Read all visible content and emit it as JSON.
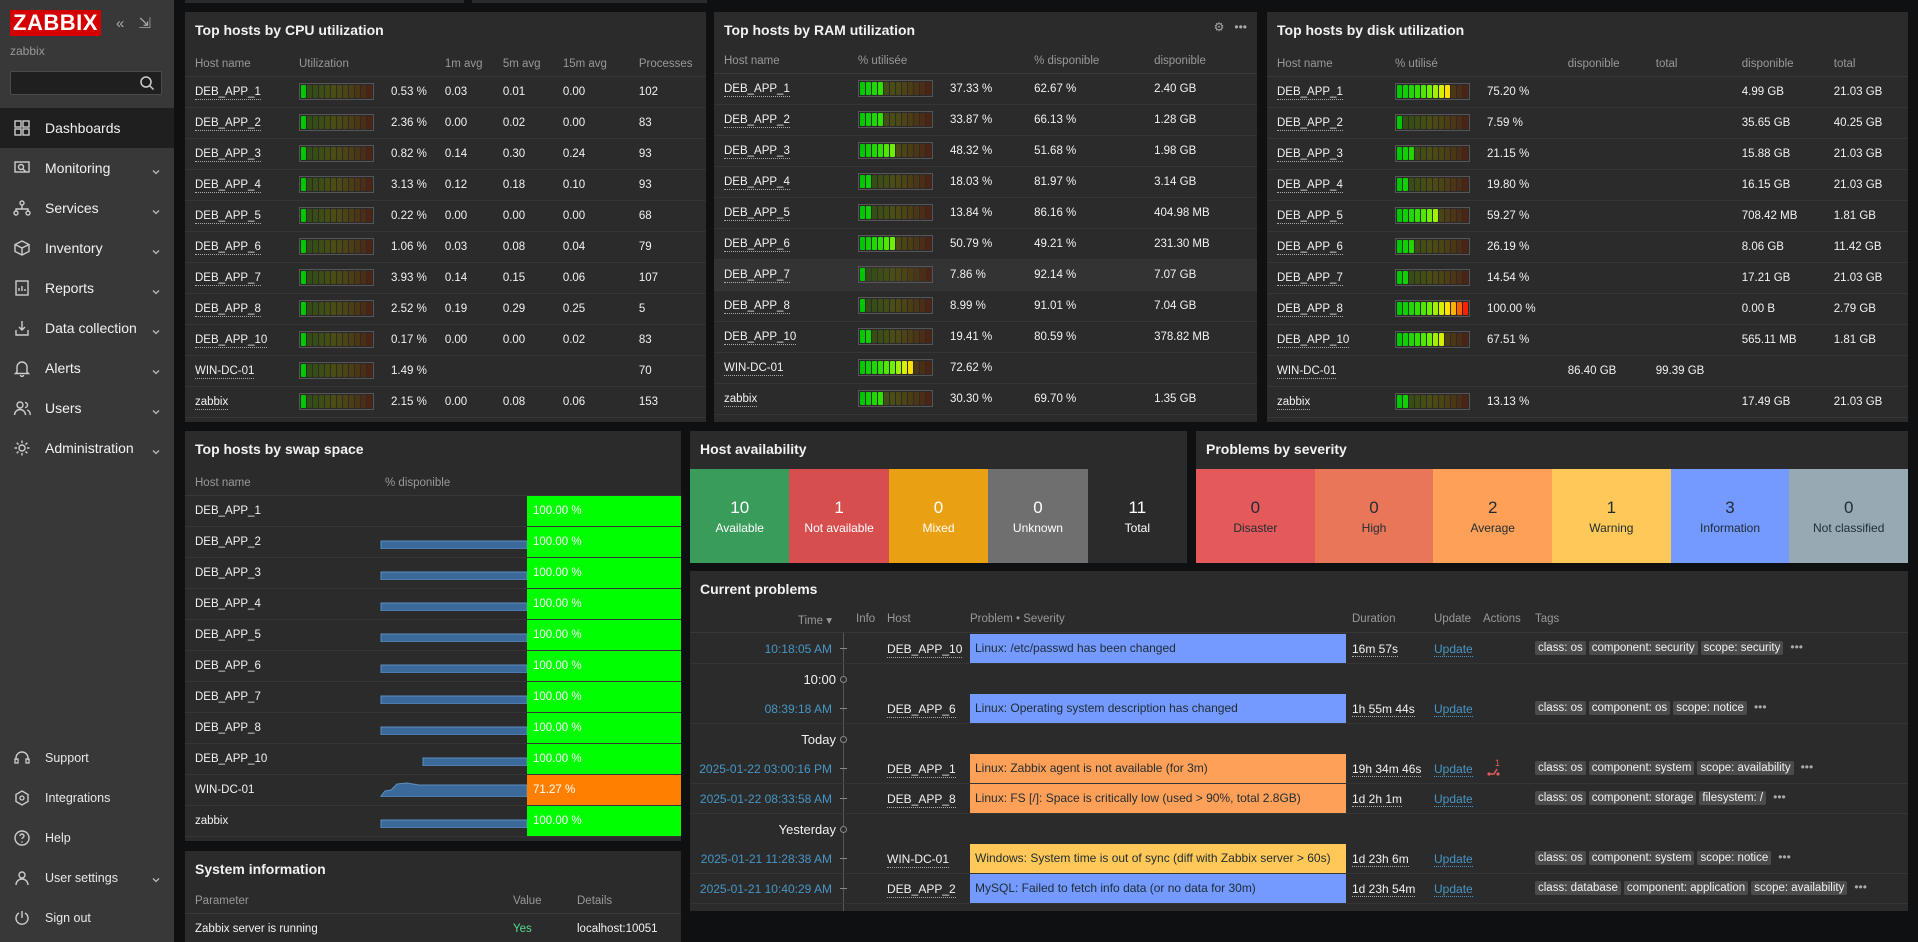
{
  "app": {
    "logo": "ZABBIX",
    "user": "zabbix"
  },
  "sidebar": {
    "search_placeholder": "",
    "items": [
      {
        "label": "Dashboards",
        "icon": "dashboards-icon",
        "active": true,
        "chevron": false
      },
      {
        "label": "Monitoring",
        "icon": "monitoring-icon",
        "chevron": true
      },
      {
        "label": "Services",
        "icon": "services-icon",
        "chevron": true
      },
      {
        "label": "Inventory",
        "icon": "inventory-icon",
        "chevron": true
      },
      {
        "label": "Reports",
        "icon": "reports-icon",
        "chevron": true
      },
      {
        "label": "Data collection",
        "icon": "data-collection-icon",
        "chevron": true
      },
      {
        "label": "Alerts",
        "icon": "alerts-icon",
        "chevron": true
      },
      {
        "label": "Users",
        "icon": "users-icon",
        "chevron": true
      },
      {
        "label": "Administration",
        "icon": "administration-icon",
        "chevron": true
      }
    ],
    "bottom": [
      {
        "label": "Support",
        "icon": "support-icon",
        "chevron": false
      },
      {
        "label": "Integrations",
        "icon": "integrations-icon",
        "chevron": false
      },
      {
        "label": "Help",
        "icon": "help-icon",
        "chevron": false
      },
      {
        "label": "User settings",
        "icon": "user-settings-icon",
        "chevron": true
      },
      {
        "label": "Sign out",
        "icon": "sign-out-icon",
        "chevron": false
      }
    ]
  },
  "cpu": {
    "title": "Top hosts by CPU utilization",
    "headers": [
      "Host name",
      "Utilization",
      "",
      "1m avg",
      "5m avg",
      "15m avg",
      "Processes"
    ],
    "rows": [
      {
        "host": "DEB_APP_1",
        "util": 0.53,
        "pct": "0.53 %",
        "m1": "0.03",
        "m5": "0.01",
        "m15": "0.00",
        "proc": "102"
      },
      {
        "host": "DEB_APP_2",
        "util": 2.36,
        "pct": "2.36 %",
        "m1": "0.00",
        "m5": "0.02",
        "m15": "0.00",
        "proc": "83"
      },
      {
        "host": "DEB_APP_3",
        "util": 0.82,
        "pct": "0.82 %",
        "m1": "0.14",
        "m5": "0.30",
        "m15": "0.24",
        "proc": "93"
      },
      {
        "host": "DEB_APP_4",
        "util": 3.13,
        "pct": "3.13 %",
        "m1": "0.12",
        "m5": "0.18",
        "m15": "0.10",
        "proc": "93"
      },
      {
        "host": "DEB_APP_5",
        "util": 0.22,
        "pct": "0.22 %",
        "m1": "0.00",
        "m5": "0.00",
        "m15": "0.00",
        "proc": "68"
      },
      {
        "host": "DEB_APP_6",
        "util": 1.06,
        "pct": "1.06 %",
        "m1": "0.03",
        "m5": "0.08",
        "m15": "0.04",
        "proc": "79"
      },
      {
        "host": "DEB_APP_7",
        "util": 3.93,
        "pct": "3.93 %",
        "m1": "0.14",
        "m5": "0.15",
        "m15": "0.06",
        "proc": "107"
      },
      {
        "host": "DEB_APP_8",
        "util": 2.52,
        "pct": "2.52 %",
        "m1": "0.19",
        "m5": "0.29",
        "m15": "0.25",
        "proc": "5"
      },
      {
        "host": "DEB_APP_10",
        "util": 0.17,
        "pct": "0.17 %",
        "m1": "0.00",
        "m5": "0.00",
        "m15": "0.02",
        "proc": "83"
      },
      {
        "host": "WIN-DC-01",
        "util": 1.49,
        "pct": "1.49 %",
        "m1": "",
        "m5": "",
        "m15": "",
        "proc": "70"
      },
      {
        "host": "zabbix",
        "util": 2.15,
        "pct": "2.15 %",
        "m1": "0.00",
        "m5": "0.08",
        "m15": "0.06",
        "proc": "153"
      }
    ]
  },
  "ram": {
    "title": "Top hosts by RAM utilization",
    "headers": [
      "Host name",
      "% utilisée",
      "",
      "% disponible",
      "disponible"
    ],
    "rows": [
      {
        "host": "DEB_APP_1",
        "util": 37.33,
        "pct": "37.33 %",
        "avail_pct": "62.67 %",
        "avail": "2.40 GB"
      },
      {
        "host": "DEB_APP_2",
        "util": 33.87,
        "pct": "33.87 %",
        "avail_pct": "66.13 %",
        "avail": "1.28 GB"
      },
      {
        "host": "DEB_APP_3",
        "util": 48.32,
        "pct": "48.32 %",
        "avail_pct": "51.68 %",
        "avail": "1.98 GB"
      },
      {
        "host": "DEB_APP_4",
        "util": 18.03,
        "pct": "18.03 %",
        "avail_pct": "81.97 %",
        "avail": "3.14 GB"
      },
      {
        "host": "DEB_APP_5",
        "util": 13.84,
        "pct": "13.84 %",
        "avail_pct": "86.16 %",
        "avail": "404.98 MB"
      },
      {
        "host": "DEB_APP_6",
        "util": 50.79,
        "pct": "50.79 %",
        "avail_pct": "49.21 %",
        "avail": "231.30 MB"
      },
      {
        "host": "DEB_APP_7",
        "util": 7.86,
        "pct": "7.86 %",
        "avail_pct": "92.14 %",
        "avail": "7.07 GB"
      },
      {
        "host": "DEB_APP_8",
        "util": 8.99,
        "pct": "8.99 %",
        "avail_pct": "91.01 %",
        "avail": "7.04 GB"
      },
      {
        "host": "DEB_APP_10",
        "util": 19.41,
        "pct": "19.41 %",
        "avail_pct": "80.59 %",
        "avail": "378.82 MB"
      },
      {
        "host": "WIN-DC-01",
        "util": 72.62,
        "pct": "72.62 %",
        "avail_pct": "",
        "avail": ""
      },
      {
        "host": "zabbix",
        "util": 30.3,
        "pct": "30.30 %",
        "avail_pct": "69.70 %",
        "avail": "1.35 GB"
      }
    ]
  },
  "disk": {
    "title": "Top hosts by disk utilization",
    "headers": [
      "Host name",
      "% utilisé",
      "",
      "disponible",
      "total",
      "disponible",
      "total"
    ],
    "rows": [
      {
        "host": "DEB_APP_1",
        "util": 75.2,
        "pct": "75.20 %",
        "d1": "",
        "t1": "",
        "d2": "4.99 GB",
        "t2": "21.03 GB"
      },
      {
        "host": "DEB_APP_2",
        "util": 7.59,
        "pct": "7.59 %",
        "d1": "",
        "t1": "",
        "d2": "35.65 GB",
        "t2": "40.25 GB"
      },
      {
        "host": "DEB_APP_3",
        "util": 21.15,
        "pct": "21.15 %",
        "d1": "",
        "t1": "",
        "d2": "15.88 GB",
        "t2": "21.03 GB"
      },
      {
        "host": "DEB_APP_4",
        "util": 19.8,
        "pct": "19.80 %",
        "d1": "",
        "t1": "",
        "d2": "16.15 GB",
        "t2": "21.03 GB"
      },
      {
        "host": "DEB_APP_5",
        "util": 59.27,
        "pct": "59.27 %",
        "d1": "",
        "t1": "",
        "d2": "708.42 MB",
        "t2": "1.81 GB"
      },
      {
        "host": "DEB_APP_6",
        "util": 26.19,
        "pct": "26.19 %",
        "d1": "",
        "t1": "",
        "d2": "8.06 GB",
        "t2": "11.42 GB"
      },
      {
        "host": "DEB_APP_7",
        "util": 14.54,
        "pct": "14.54 %",
        "d1": "",
        "t1": "",
        "d2": "17.21 GB",
        "t2": "21.03 GB"
      },
      {
        "host": "DEB_APP_8",
        "util": 100.0,
        "pct": "100.00 %",
        "d1": "",
        "t1": "",
        "d2": "0.00 B",
        "t2": "2.79 GB"
      },
      {
        "host": "DEB_APP_10",
        "util": 67.51,
        "pct": "67.51 %",
        "d1": "",
        "t1": "",
        "d2": "565.11 MB",
        "t2": "1.81 GB"
      },
      {
        "host": "WIN-DC-01",
        "util": null,
        "pct": "",
        "d1": "86.40 GB",
        "t1": "99.39 GB",
        "d2": "",
        "t2": ""
      },
      {
        "host": "zabbix",
        "util": 13.13,
        "pct": "13.13 %",
        "d1": "",
        "t1": "",
        "d2": "17.49 GB",
        "t2": "21.03 GB"
      }
    ]
  },
  "swap": {
    "title": "Top hosts by swap space",
    "headers": [
      "Host name",
      "% disponible"
    ],
    "rows": [
      {
        "host": "DEB_APP_1",
        "value": "100.00 %",
        "color": "#00ff00",
        "spark": false
      },
      {
        "host": "DEB_APP_2",
        "value": "100.00 %",
        "color": "#00ff00",
        "spark": true
      },
      {
        "host": "DEB_APP_3",
        "value": "100.00 %",
        "color": "#00ff00",
        "spark": true
      },
      {
        "host": "DEB_APP_4",
        "value": "100.00 %",
        "color": "#00ff00",
        "spark": true
      },
      {
        "host": "DEB_APP_5",
        "value": "100.00 %",
        "color": "#00ff00",
        "spark": true
      },
      {
        "host": "DEB_APP_6",
        "value": "100.00 %",
        "color": "#00ff00",
        "spark": true
      },
      {
        "host": "DEB_APP_7",
        "value": "100.00 %",
        "color": "#00ff00",
        "spark": true
      },
      {
        "host": "DEB_APP_8",
        "value": "100.00 %",
        "color": "#00ff00",
        "spark": true
      },
      {
        "host": "DEB_APP_10",
        "value": "100.00 %",
        "color": "#00ff00",
        "spark": true
      },
      {
        "host": "WIN-DC-01",
        "value": "71.27 %",
        "color": "#ff8000",
        "spark": true
      },
      {
        "host": "zabbix",
        "value": "100.00 %",
        "color": "#00ff00",
        "spark": true
      }
    ]
  },
  "availability": {
    "title": "Host availability",
    "boxes": [
      {
        "count": "10",
        "label": "Available",
        "color": "#3a9c5a"
      },
      {
        "count": "1",
        "label": "Not available",
        "color": "#d64e4e"
      },
      {
        "count": "0",
        "label": "Mixed",
        "color": "#e9a012"
      },
      {
        "count": "0",
        "label": "Unknown",
        "color": "#6f6f6f"
      },
      {
        "count": "11",
        "label": "Total",
        "color": "#2b2b2b"
      }
    ]
  },
  "severity": {
    "title": "Problems by severity",
    "boxes": [
      {
        "count": "0",
        "label": "Disaster",
        "color": "#e45959",
        "text": "#1f2c33"
      },
      {
        "count": "0",
        "label": "High",
        "color": "#e97659",
        "text": "#1f2c33"
      },
      {
        "count": "2",
        "label": "Average",
        "color": "#ffa059",
        "text": "#1f2c33"
      },
      {
        "count": "1",
        "label": "Warning",
        "color": "#ffc859",
        "text": "#1f2c33"
      },
      {
        "count": "3",
        "label": "Information",
        "color": "#7499ff",
        "text": "#1f2c33"
      },
      {
        "count": "0",
        "label": "Not classified",
        "color": "#97aab3",
        "text": "#1f2c33"
      }
    ]
  },
  "system": {
    "title": "System information",
    "headers": [
      "Parameter",
      "Value",
      "Details"
    ],
    "rows": [
      {
        "param": "Zabbix server is running",
        "value": "Yes",
        "details": "localhost:10051"
      }
    ]
  },
  "problems": {
    "title": "Current problems",
    "headers": [
      "Time ▾",
      "Info",
      "Host",
      "Problem • Severity",
      "Duration",
      "Update",
      "Actions",
      "Tags"
    ],
    "rows": [
      {
        "kind": "row",
        "time": "10:18:05 AM",
        "host": "DEB_APP_10",
        "problem": "Linux: /etc/passwd has been changed",
        "color": "#7499ff",
        "duration": "16m 57s",
        "update": "Update",
        "action": false,
        "tags": [
          "class: os",
          "component: security",
          "scope: security"
        ]
      },
      {
        "kind": "sep",
        "label": "10:00"
      },
      {
        "kind": "row",
        "time": "08:39:18 AM",
        "host": "DEB_APP_6",
        "problem": "Linux: Operating system description has changed",
        "color": "#7499ff",
        "duration": "1h 55m 44s",
        "update": "Update",
        "action": false,
        "tags": [
          "class: os",
          "component: os",
          "scope: notice"
        ]
      },
      {
        "kind": "sep",
        "label": "Today"
      },
      {
        "kind": "row",
        "time": "2025-01-22 03:00:16 PM",
        "host": "DEB_APP_1",
        "problem": "Linux: Zabbix agent is not available (for 3m)",
        "color": "#ffa059",
        "duration": "19h 34m 46s",
        "update": "Update",
        "action": true,
        "action_count": "1",
        "tags": [
          "class: os",
          "component: system",
          "scope: availability"
        ]
      },
      {
        "kind": "row",
        "time": "2025-01-22 08:33:58 AM",
        "host": "DEB_APP_8",
        "problem": "Linux: FS [/]: Space is critically low (used > 90%, total 2.8GB)",
        "color": "#ffa059",
        "duration": "1d 2h 1m",
        "update": "Update",
        "action": false,
        "tags": [
          "class: os",
          "component: storage",
          "filesystem: /"
        ]
      },
      {
        "kind": "sep",
        "label": "Yesterday"
      },
      {
        "kind": "row",
        "time": "2025-01-21 11:28:38 AM",
        "host": "WIN-DC-01",
        "problem": "Windows: System time is out of sync (diff with Zabbix server > 60s)",
        "color": "#ffc859",
        "duration": "1d 23h 6m",
        "update": "Update",
        "action": false,
        "tags": [
          "class: os",
          "component: system",
          "scope: notice"
        ]
      },
      {
        "kind": "row",
        "time": "2025-01-21 10:40:29 AM",
        "host": "DEB_APP_2",
        "problem": "MySQL: Failed to fetch info data (or no data for 30m)",
        "color": "#7499ff",
        "duration": "1d 23h 54m",
        "update": "Update",
        "action": false,
        "tags": [
          "class: database",
          "component: application",
          "scope: availability"
        ]
      }
    ]
  }
}
